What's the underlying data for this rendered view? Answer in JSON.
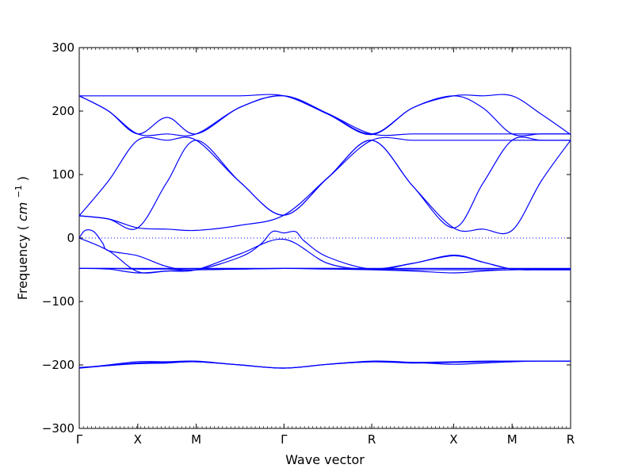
{
  "chart_data": {
    "type": "line",
    "title": "",
    "xlabel": "Wave vector",
    "ylabel": "Frequency",
    "ylabel_unit_base": "cm",
    "ylabel_unit_exp": "−1",
    "ylim": [
      -300,
      300
    ],
    "xlim": [
      0,
      8
    ],
    "yticks": [
      300,
      200,
      100,
      0,
      -100,
      -200,
      -300
    ],
    "ytick_labels": [
      "300",
      "200",
      "100",
      "0",
      "−100",
      "−200",
      "−300"
    ],
    "xticks": [
      0,
      1,
      2,
      3.5,
      5,
      6.4,
      7.4,
      8.4
    ],
    "xtick_labels": [
      "Γ",
      "X",
      "M",
      "Γ",
      "R",
      "X",
      "M",
      "R"
    ],
    "zero_line": true,
    "grid": false,
    "legend": "none",
    "line_color": "#0000ff",
    "series": [
      {
        "x": [
          0,
          0.5,
          1,
          1.5,
          2,
          2.75,
          3.5,
          4.25,
          5,
          5.7,
          6.4,
          6.9,
          7.4,
          7.9,
          8.4
        ],
        "values": [
          224,
          224,
          224,
          224,
          224,
          224,
          224,
          195,
          163,
          205,
          224,
          224,
          224,
          195,
          163
        ]
      },
      {
        "x": [
          0,
          0.5,
          1,
          1.5,
          2,
          2.75,
          3.5,
          4.25,
          5,
          5.7,
          6.4,
          6.9,
          7.4,
          7.9,
          8.4
        ],
        "values": [
          224,
          200,
          164,
          164,
          164,
          206,
          224,
          196,
          164,
          164,
          164,
          164,
          164,
          164,
          164
        ]
      },
      {
        "x": [
          0,
          0.5,
          1,
          1.5,
          2,
          2.75,
          3.5,
          4.25,
          5,
          5.7,
          6.4,
          6.9,
          7.4,
          7.9,
          8.4
        ],
        "values": [
          224,
          200,
          164,
          190,
          164,
          206,
          224,
          196,
          164,
          205,
          224,
          205,
          164,
          164,
          164
        ]
      },
      {
        "x": [
          0,
          0.5,
          1,
          1.5,
          2,
          2.75,
          3.5,
          4.25,
          5,
          5.7,
          6.4,
          6.9,
          7.4,
          7.9,
          8.4
        ],
        "values": [
          35,
          90,
          154,
          154,
          154,
          88,
          36,
          95,
          154,
          154,
          154,
          154,
          154,
          154,
          154
        ]
      },
      {
        "x": [
          0,
          0.5,
          1,
          1.5,
          2,
          2.75,
          3.5,
          4.25,
          5,
          5.7,
          6.4,
          6.9,
          7.4,
          7.9,
          8.4
        ],
        "values": [
          35,
          30,
          16,
          88,
          154,
          88,
          36,
          95,
          154,
          82,
          16,
          14,
          12,
          90,
          154
        ]
      },
      {
        "x": [
          0,
          0.5,
          1,
          1.5,
          2,
          2.75,
          3.5,
          4.25,
          5,
          5.7,
          6.4,
          6.9,
          7.4,
          7.9,
          8.4
        ],
        "values": [
          35,
          30,
          16,
          14,
          12,
          20,
          36,
          95,
          154,
          82,
          16,
          86,
          154,
          154,
          154
        ]
      },
      {
        "x": [
          0,
          0.1,
          0.25,
          0.4,
          0.5,
          1,
          1.5,
          2,
          2.75,
          3.1,
          3.3,
          3.5,
          3.7,
          3.85,
          4.25,
          5,
          5.7,
          6.4,
          6.9,
          7.4,
          7.9,
          8.4
        ],
        "values": [
          0,
          12,
          10,
          -8,
          -20,
          -28,
          -45,
          -50,
          -30,
          -10,
          10,
          8,
          10,
          -5,
          -30,
          -49,
          -40,
          -27,
          -38,
          -49,
          -50,
          -50
        ]
      },
      {
        "x": [
          0,
          0.5,
          1,
          1.5,
          2,
          2.75,
          3.5,
          4.25,
          5,
          5.7,
          6.4,
          6.9,
          7.4,
          7.9,
          8.4
        ],
        "values": [
          0,
          -20,
          -53,
          -52,
          -50,
          -25,
          -2,
          -40,
          -49,
          -40,
          -28,
          -38,
          -49,
          -50,
          -50
        ]
      },
      {
        "x": [
          0,
          0.5,
          1,
          1.5,
          2,
          2.75,
          3.5,
          4.25,
          5,
          5.7,
          6.4,
          6.9,
          7.4,
          7.9,
          8.4
        ],
        "values": [
          -48,
          -49,
          -55,
          -52,
          -50,
          -49,
          -48,
          -49,
          -50,
          -52,
          -55,
          -52,
          -50,
          -50,
          -50
        ]
      },
      {
        "x": [
          0,
          0.5,
          1,
          1.5,
          2,
          2.75,
          3.5,
          4.25,
          5,
          5.7,
          6.4,
          6.9,
          7.4,
          7.9,
          8.4
        ],
        "values": [
          -48,
          -48,
          -49,
          -49,
          -50,
          -49,
          -48,
          -48,
          -49,
          -50,
          -50,
          -50,
          -50,
          -49,
          -49
        ]
      },
      {
        "x": [
          0,
          0.5,
          1,
          1.5,
          2,
          2.75,
          3.5,
          4.25,
          5,
          5.7,
          6.4,
          6.9,
          7.4,
          7.9,
          8.4
        ],
        "values": [
          -48,
          -48,
          -48,
          -48,
          -48,
          -48,
          -48,
          -48,
          -48,
          -48,
          -48,
          -48,
          -48,
          -48,
          -48
        ]
      },
      {
        "x": [
          0,
          0.5,
          1,
          1.5,
          2,
          2.75,
          3.5,
          4.25,
          5,
          5.7,
          6.4,
          6.9,
          7.4,
          7.9,
          8.4
        ],
        "values": [
          -205,
          -200,
          -195,
          -195,
          -194,
          -200,
          -205,
          -199,
          -194,
          -196,
          -199,
          -197,
          -195,
          -194,
          -194
        ]
      },
      {
        "x": [
          0,
          0.5,
          1,
          1.5,
          2,
          2.75,
          3.5,
          4.25,
          5,
          5.7,
          6.4,
          6.9,
          7.4,
          7.9,
          8.4
        ],
        "values": [
          -205,
          -201,
          -197,
          -196,
          -195,
          -200,
          -205,
          -199,
          -195,
          -196,
          -195,
          -194,
          -194,
          -194,
          -194
        ]
      },
      {
        "x": [
          0,
          0.5,
          1,
          1.5,
          2,
          2.75,
          3.5,
          4.25,
          5,
          5.7,
          6.4,
          6.9,
          7.4,
          7.9,
          8.4
        ],
        "values": [
          -204,
          -201,
          -198,
          -197,
          -195,
          -200,
          -205,
          -199,
          -195,
          -197,
          -196,
          -195,
          -194,
          -194,
          -194
        ]
      }
    ]
  }
}
